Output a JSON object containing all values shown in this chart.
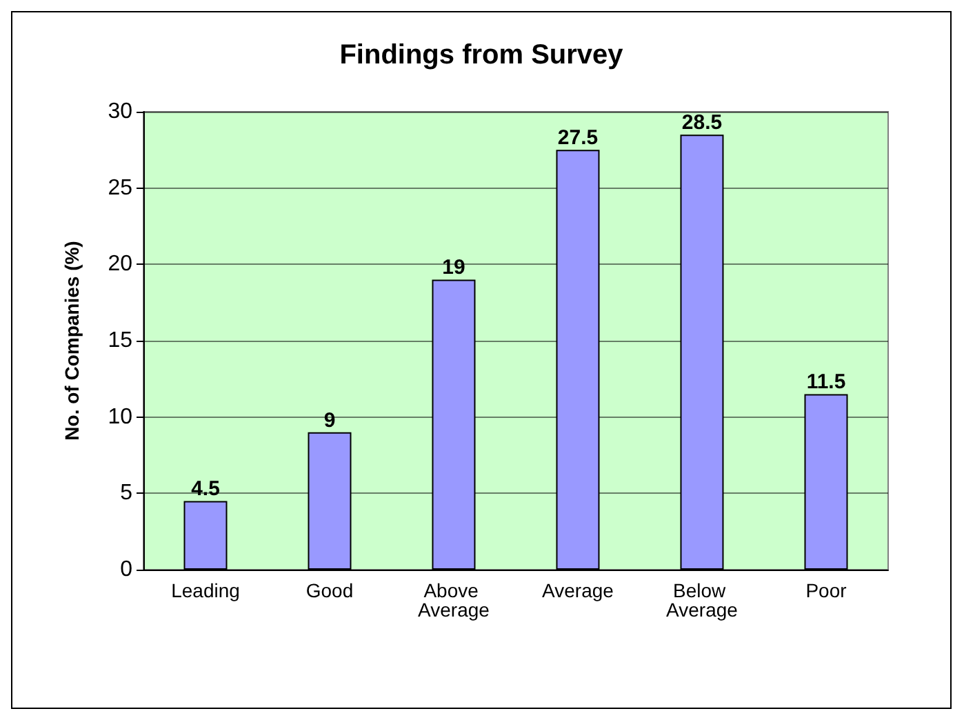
{
  "chart_data": {
    "type": "bar",
    "title": "Findings from Survey",
    "ylabel": "No. of Companies (%)",
    "categories": [
      "Leading",
      "Good",
      "Above Average",
      "Average",
      "Below Average",
      "Poor"
    ],
    "values": [
      4.5,
      9,
      19,
      27.5,
      28.5,
      11.5
    ],
    "color": "#9999ff",
    "ylim": [
      0,
      30
    ],
    "yticks": [
      0,
      5,
      10,
      15,
      20,
      25,
      30
    ],
    "grid": "y",
    "data_labels": true
  }
}
